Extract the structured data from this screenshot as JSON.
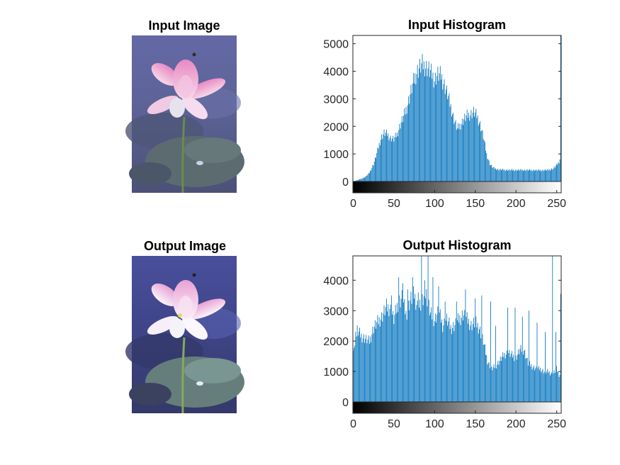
{
  "figure": {
    "panels": [
      {
        "title": "Input Image"
      },
      {
        "title": "Output Image"
      }
    ]
  },
  "chart_data": [
    {
      "type": "bar",
      "title": "Input Histogram",
      "xlabel": "",
      "ylabel": "",
      "xlim": [
        0,
        255
      ],
      "ylim": [
        0,
        5300
      ],
      "xticks": [
        0,
        50,
        100,
        150,
        200,
        250
      ],
      "yticks": [
        0,
        1000,
        2000,
        3000,
        4000,
        5000
      ],
      "grid": false,
      "legend": "none",
      "colorbar": "grayscale",
      "bar_color": "#0072BD",
      "profile": [
        [
          0,
          0
        ],
        [
          3,
          30
        ],
        [
          8,
          80
        ],
        [
          15,
          180
        ],
        [
          20,
          350
        ],
        [
          25,
          700
        ],
        [
          28,
          1000
        ],
        [
          32,
          1500
        ],
        [
          35,
          1800
        ],
        [
          38,
          1950
        ],
        [
          42,
          1900
        ],
        [
          46,
          1750
        ],
        [
          50,
          1700
        ],
        [
          54,
          1900
        ],
        [
          58,
          2300
        ],
        [
          62,
          2600
        ],
        [
          66,
          3000
        ],
        [
          70,
          3500
        ],
        [
          74,
          4000
        ],
        [
          78,
          4400
        ],
        [
          82,
          4600
        ],
        [
          85,
          4700
        ],
        [
          88,
          4650
        ],
        [
          92,
          4550
        ],
        [
          96,
          4350
        ],
        [
          100,
          4100
        ],
        [
          104,
          4300
        ],
        [
          108,
          4250
        ],
        [
          112,
          3900
        ],
        [
          116,
          3500
        ],
        [
          120,
          3000
        ],
        [
          124,
          2500
        ],
        [
          128,
          2100
        ],
        [
          132,
          2300
        ],
        [
          136,
          2500
        ],
        [
          140,
          2650
        ],
        [
          144,
          2700
        ],
        [
          148,
          2800
        ],
        [
          152,
          2650
        ],
        [
          156,
          2300
        ],
        [
          160,
          1800
        ],
        [
          164,
          1100
        ],
        [
          168,
          700
        ],
        [
          172,
          550
        ],
        [
          178,
          480
        ],
        [
          190,
          460
        ],
        [
          210,
          460
        ],
        [
          230,
          450
        ],
        [
          240,
          460
        ],
        [
          246,
          520
        ],
        [
          250,
          650
        ],
        [
          253,
          800
        ],
        [
          255,
          1000
        ]
      ],
      "spike_values": [
        [
          255,
          5300
        ]
      ]
    },
    {
      "type": "bar",
      "title": "Output Histogram",
      "xlabel": "",
      "ylabel": "",
      "xlim": [
        0,
        255
      ],
      "ylim": [
        0,
        4800
      ],
      "xticks": [
        0,
        50,
        100,
        150,
        200,
        250
      ],
      "yticks": [
        0,
        1000,
        2000,
        3000,
        4000
      ],
      "grid": false,
      "legend": "none",
      "colorbar": "grayscale",
      "bar_color": "#0072BD",
      "profile": [
        [
          0,
          2050
        ],
        [
          2,
          1950
        ],
        [
          5,
          2600
        ],
        [
          10,
          2400
        ],
        [
          15,
          2300
        ],
        [
          20,
          2200
        ],
        [
          25,
          2700
        ],
        [
          30,
          2900
        ],
        [
          35,
          3100
        ],
        [
          40,
          3400
        ],
        [
          45,
          3450
        ],
        [
          50,
          3000
        ],
        [
          55,
          3600
        ],
        [
          60,
          3800
        ],
        [
          65,
          3200
        ],
        [
          70,
          3700
        ],
        [
          75,
          3900
        ],
        [
          80,
          3400
        ],
        [
          85,
          3600
        ],
        [
          90,
          3900
        ],
        [
          95,
          3200
        ],
        [
          100,
          3000
        ],
        [
          105,
          3300
        ],
        [
          110,
          2800
        ],
        [
          115,
          3000
        ],
        [
          120,
          2700
        ],
        [
          125,
          2800
        ],
        [
          130,
          3000
        ],
        [
          135,
          3200
        ],
        [
          140,
          3000
        ],
        [
          145,
          2800
        ],
        [
          150,
          2900
        ],
        [
          155,
          2700
        ],
        [
          160,
          2200
        ],
        [
          165,
          1500
        ],
        [
          170,
          1200
        ],
        [
          175,
          1300
        ],
        [
          180,
          1500
        ],
        [
          185,
          1700
        ],
        [
          190,
          1800
        ],
        [
          195,
          1700
        ],
        [
          200,
          1600
        ],
        [
          205,
          1900
        ],
        [
          210,
          1900
        ],
        [
          215,
          1400
        ],
        [
          220,
          1300
        ],
        [
          225,
          1200
        ],
        [
          230,
          1200
        ],
        [
          235,
          1100
        ],
        [
          240,
          1100
        ],
        [
          245,
          1000
        ],
        [
          250,
          1200
        ],
        [
          253,
          1000
        ],
        [
          255,
          1000
        ]
      ],
      "spike_values": [
        [
          3,
          2300
        ],
        [
          41,
          3400
        ],
        [
          47,
          3500
        ],
        [
          56,
          4100
        ],
        [
          61,
          3900
        ],
        [
          67,
          3700
        ],
        [
          73,
          4100
        ],
        [
          80,
          3600
        ],
        [
          84,
          4800
        ],
        [
          88,
          4000
        ],
        [
          92,
          4800
        ],
        [
          98,
          4100
        ],
        [
          105,
          3800
        ],
        [
          113,
          3300
        ],
        [
          127,
          3300
        ],
        [
          138,
          3700
        ],
        [
          150,
          3400
        ],
        [
          158,
          3500
        ],
        [
          169,
          3300
        ],
        [
          175,
          2500
        ],
        [
          190,
          3100
        ],
        [
          199,
          3100
        ],
        [
          208,
          2800
        ],
        [
          216,
          3000
        ],
        [
          226,
          2600
        ],
        [
          236,
          2300
        ],
        [
          245,
          4800
        ],
        [
          249,
          2300
        ],
        [
          255,
          3550
        ]
      ]
    }
  ]
}
